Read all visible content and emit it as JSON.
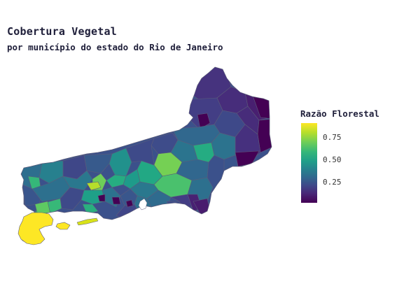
{
  "title": "Cobertura Vegetal",
  "subtitle": "por município do estado do Rio de Janeiro",
  "legend": {
    "title": "Razão Florestal",
    "ticks": [
      "0.75",
      "0.50",
      "0.25"
    ],
    "colors": [
      "#fde725",
      "#6ece58",
      "#1f9e89",
      "#31688e",
      "#482878",
      "#440154"
    ]
  }
}
